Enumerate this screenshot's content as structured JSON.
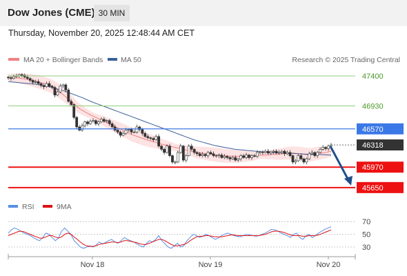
{
  "header": {
    "title": "Dow Jones (CME)",
    "interval": "30 MIN"
  },
  "datetime": "Thursday, November 20, 2025 12:48:44 AM CET",
  "legend": {
    "ma20_label": "MA 20 + Bollinger Bands",
    "ma20_color": "#f08080",
    "ma50_label": "MA 50",
    "ma50_color": "#3a5f99",
    "credit": "Research © 2025 Trading Central"
  },
  "rsi_legend": {
    "rsi_label": "RSI",
    "rsi_color": "#5b8ee6",
    "ma_label": "9MA",
    "ma_color": "#dd1111"
  },
  "chart_data": [
    {
      "type": "candlestick",
      "x_labels": [
        "Nov 18",
        "Nov 19",
        "Nov 20"
      ],
      "ylim": [
        45540,
        47530
      ],
      "levels": [
        {
          "value": 47400,
          "label": "47400",
          "color": "#8fcf7a",
          "kind": "resistance"
        },
        {
          "value": 46930,
          "label": "46930",
          "color": "#8fcf7a",
          "kind": "resistance"
        },
        {
          "value": 46570,
          "label": "46570",
          "color": "#3b78e7",
          "kind": "pivot"
        },
        {
          "value": 46318,
          "label": "46318",
          "color": "#333333",
          "kind": "last-price"
        },
        {
          "value": 45970,
          "label": "45970",
          "color": "#ee1111",
          "kind": "support"
        },
        {
          "value": 45650,
          "label": "45650",
          "color": "#ee1111",
          "kind": "support"
        }
      ],
      "close_series": [
        47370,
        47360,
        47390,
        47400,
        47420,
        47410,
        47380,
        47360,
        47330,
        47300,
        47310,
        47280,
        47250,
        47230,
        47280,
        47240,
        47220,
        47100,
        47150,
        47240,
        47260,
        47180,
        47000,
        46950,
        46750,
        46600,
        46550,
        46620,
        46680,
        46650,
        46690,
        46700,
        46650,
        46680,
        46720,
        46690,
        46700,
        46650,
        46600,
        46550,
        46520,
        46470,
        46500,
        46550,
        46560,
        46520,
        46520,
        46600,
        46560,
        46500,
        46450,
        46430,
        46420,
        46400,
        46450,
        46300,
        46250,
        46200,
        46300,
        46150,
        46050,
        46050,
        46200,
        46300,
        46080,
        46150,
        46300,
        46250,
        46200,
        46180,
        46150,
        46170,
        46150,
        46200,
        46180,
        46150,
        46150,
        46160,
        46120,
        46140,
        46120,
        46100,
        46120,
        46080,
        46100,
        46150,
        46120,
        46160,
        46120,
        46150,
        46140,
        46200,
        46210,
        46200,
        46220,
        46190,
        46210,
        46220,
        46190,
        46200,
        46220,
        46180,
        46200,
        46150,
        46050,
        46070,
        46150,
        46100,
        46050,
        46100,
        46180,
        46200,
        46150,
        46200,
        46250,
        46280,
        46260,
        46300,
        46318
      ],
      "ma20": [
        47380,
        47370,
        47365,
        47350,
        47340,
        47320,
        47300,
        47270,
        47240,
        47190,
        47120,
        47050,
        46980,
        46900,
        46850,
        46800,
        46760,
        46720,
        46680,
        46640,
        46600,
        46560,
        46520,
        46480,
        46450,
        46420,
        46390,
        46370,
        46340,
        46320,
        46300,
        46280,
        46260,
        46240,
        46220,
        46200,
        46190,
        46180,
        46170,
        46160,
        46150,
        46145,
        46140,
        46140,
        46140,
        46140,
        46150,
        46160,
        46160,
        46170,
        46170,
        46180,
        46190,
        46190,
        46180,
        46170,
        46160,
        46180,
        46190,
        46200,
        46220
      ],
      "ma50": [
        47310,
        47300,
        47290,
        47280,
        47270,
        47250,
        47230,
        47200,
        47170,
        47130,
        47090,
        47050,
        47000,
        46960,
        46920,
        46880,
        46840,
        46800,
        46760,
        46720,
        46680,
        46640,
        46600,
        46560,
        46520,
        46480,
        46440,
        46400,
        46370,
        46340,
        46310,
        46290,
        46270,
        46250,
        46240,
        46230,
        46220,
        46210,
        46200,
        46200,
        46200,
        46190,
        46180,
        46175,
        46170,
        46170,
        46165,
        46160
      ],
      "forecast_arrow": {
        "from": 46318,
        "to": 45650
      }
    },
    {
      "type": "line",
      "name": "RSI",
      "yticks": [
        70,
        50,
        30
      ],
      "ylim": [
        17,
        80
      ],
      "rsi": [
        52,
        57,
        60,
        58,
        55,
        52,
        50,
        48,
        45,
        42,
        40,
        45,
        52,
        50,
        45,
        40,
        44,
        55,
        60,
        55,
        50,
        40,
        35,
        30,
        28,
        30,
        32,
        30,
        33,
        38,
        35,
        37,
        40,
        42,
        38,
        36,
        40,
        45,
        42,
        40,
        38,
        35,
        32,
        30,
        35,
        40,
        38,
        42,
        48,
        40,
        35,
        30,
        28,
        32,
        36,
        30,
        32,
        40,
        45,
        50,
        48,
        45,
        47,
        50,
        48,
        45,
        42,
        44,
        48,
        50,
        52,
        50,
        48,
        47,
        46,
        48,
        50,
        49,
        48,
        47,
        48,
        50,
        52,
        55,
        58,
        57,
        55,
        52,
        50,
        48,
        45,
        50,
        52,
        45,
        42,
        48,
        50,
        45,
        48,
        52,
        55,
        58,
        60,
        62
      ],
      "ma9": [
        48,
        50,
        52,
        54,
        55,
        54,
        52,
        50,
        48,
        46,
        44,
        44,
        46,
        48,
        48,
        46,
        44,
        46,
        50,
        52,
        50,
        46,
        42,
        38,
        34,
        32,
        31,
        31,
        32,
        34,
        35,
        36,
        37,
        38,
        38,
        37,
        38,
        40,
        40,
        39,
        38,
        37,
        35,
        34,
        34,
        36,
        38,
        40,
        42,
        42,
        40,
        37,
        34,
        32,
        32,
        33,
        34,
        36,
        40,
        43,
        46,
        47,
        47,
        48,
        48,
        47,
        46,
        46,
        46,
        47,
        48,
        49,
        49,
        48,
        48,
        48,
        48,
        48,
        48,
        48,
        48,
        49,
        50,
        52,
        54,
        55,
        55,
        54,
        53,
        51,
        49,
        48,
        48,
        48,
        47,
        47,
        48,
        48,
        48,
        49,
        51,
        53,
        55,
        57
      ]
    }
  ]
}
